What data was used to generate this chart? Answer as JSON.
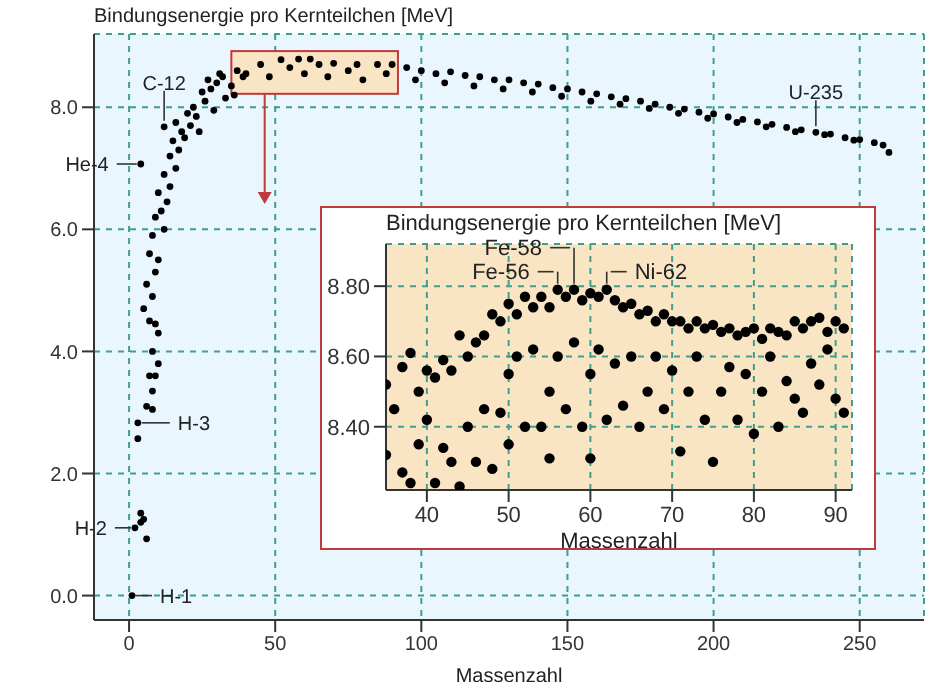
{
  "chart_data": [
    {
      "type": "scatter",
      "title": "Bindungsenergie pro Kernteilchen [MeV]",
      "xlabel": "Massenzahl",
      "color": "#000000",
      "marker": "circle",
      "grid": true,
      "xlim": [
        -12,
        272
      ],
      "ylim": [
        -0.4,
        9.2
      ],
      "xticks": [
        0,
        50,
        100,
        150,
        200,
        250
      ],
      "yticks": [
        {
          "value": 0,
          "label": "0.0"
        },
        {
          "value": 2,
          "label": "2.0"
        },
        {
          "value": 4,
          "label": "4.0"
        },
        {
          "value": 6,
          "label": "6.0"
        },
        {
          "value": 8,
          "label": "8.0"
        }
      ],
      "x": [
        1,
        2,
        3,
        3,
        4,
        5,
        4,
        6,
        6,
        8,
        8,
        9,
        10,
        7,
        8,
        10,
        9,
        7,
        5,
        8,
        6,
        9,
        7,
        10,
        8,
        12,
        9,
        11,
        13,
        10,
        14,
        12,
        16,
        4,
        12,
        14,
        17,
        15,
        19,
        18,
        16,
        21,
        20,
        23,
        22,
        26,
        25,
        28,
        30,
        27,
        32,
        24,
        29,
        33,
        35,
        31,
        37,
        36,
        39,
        40,
        45,
        48,
        52,
        55,
        58,
        60,
        62,
        65,
        68,
        70,
        75,
        78,
        80,
        85,
        88,
        90,
        95,
        98,
        100,
        105,
        108,
        110,
        115,
        118,
        120,
        125,
        128,
        130,
        135,
        138,
        140,
        145,
        148,
        150,
        155,
        158,
        160,
        165,
        168,
        170,
        175,
        178,
        180,
        185,
        188,
        190,
        195,
        198,
        200,
        205,
        208,
        210,
        215,
        218,
        220,
        225,
        228,
        230,
        235,
        238,
        240,
        245,
        248,
        250,
        255,
        258,
        260
      ],
      "values": [
        0,
        1.11,
        2.57,
        2.83,
        1.35,
        1.25,
        1.2,
        0.93,
        3.1,
        3.05,
        3.35,
        3.6,
        3.8,
        3.6,
        4.0,
        4.3,
        4.45,
        4.5,
        4.7,
        4.9,
        5.1,
        5.3,
        5.6,
        5.5,
        5.9,
        6.0,
        6.2,
        6.3,
        6.45,
        6.6,
        6.7,
        6.9,
        7.0,
        7.07,
        7.68,
        7.2,
        7.3,
        7.45,
        7.5,
        7.6,
        7.75,
        7.7,
        7.9,
        7.85,
        8.0,
        8.1,
        8.25,
        8.3,
        8.4,
        8.45,
        8.5,
        7.6,
        7.95,
        8.15,
        8.35,
        8.55,
        8.6,
        8.2,
        8.5,
        8.55,
        8.7,
        8.5,
        8.78,
        8.65,
        8.79,
        8.55,
        8.79,
        8.7,
        8.5,
        8.72,
        8.6,
        8.7,
        8.45,
        8.7,
        8.55,
        8.7,
        8.65,
        8.45,
        8.6,
        8.55,
        8.4,
        8.58,
        8.52,
        8.35,
        8.5,
        8.45,
        8.3,
        8.45,
        8.4,
        8.25,
        8.38,
        8.32,
        8.18,
        8.3,
        8.25,
        8.1,
        8.22,
        8.17,
        8.05,
        8.14,
        8.1,
        7.98,
        8.05,
        8.0,
        7.9,
        7.97,
        7.92,
        7.82,
        7.89,
        7.84,
        7.75,
        7.8,
        7.76,
        7.68,
        7.72,
        7.67,
        7.6,
        7.63,
        7.59,
        7.55,
        7.56,
        7.5,
        7.46,
        7.47,
        7.42,
        7.38,
        7.26
      ],
      "annotations": [
        {
          "text": "H-1",
          "x": 1,
          "y": 0
        },
        {
          "text": "H-2",
          "x": 2,
          "y": 1.11
        },
        {
          "text": "H-3",
          "x": 3,
          "y": 2.83
        },
        {
          "text": "He-4",
          "x": 4,
          "y": 7.07
        },
        {
          "text": "C-12",
          "x": 12,
          "y": 7.68
        },
        {
          "text": "U-235",
          "x": 235,
          "y": 7.59
        }
      ]
    },
    {
      "type": "scatter",
      "title": "Bindungsenergie pro Kernteilchen [MeV]",
      "xlabel": "Massenzahl",
      "color": "#000000",
      "marker": "circle",
      "grid": true,
      "xlim": [
        35,
        92
      ],
      "ylim": [
        8.22,
        8.92
      ],
      "xticks": [
        40,
        50,
        60,
        70,
        80,
        90
      ],
      "yticks": [
        {
          "value": 8.4,
          "label": "8.40"
        },
        {
          "value": 8.6,
          "label": "8.60"
        },
        {
          "value": 8.8,
          "label": "8.80"
        }
      ],
      "x": [
        35,
        35,
        36,
        37,
        37,
        38,
        38,
        39,
        39,
        40,
        40,
        41,
        41,
        42,
        42,
        43,
        43,
        44,
        44,
        45,
        45,
        46,
        46,
        47,
        47,
        48,
        48,
        49,
        49,
        50,
        50,
        50,
        51,
        51,
        52,
        52,
        53,
        53,
        54,
        54,
        55,
        55,
        55,
        56,
        56,
        57,
        57,
        58,
        58,
        59,
        59,
        60,
        60,
        60,
        61,
        61,
        62,
        62,
        63,
        63,
        64,
        64,
        65,
        65,
        66,
        66,
        67,
        67,
        68,
        68,
        69,
        69,
        70,
        70,
        71,
        71,
        72,
        72,
        73,
        73,
        74,
        74,
        75,
        75,
        76,
        76,
        77,
        77,
        78,
        78,
        79,
        79,
        80,
        80,
        81,
        81,
        82,
        82,
        83,
        83,
        84,
        84,
        85,
        85,
        86,
        86,
        87,
        87,
        88,
        88,
        89,
        89,
        90,
        90,
        91,
        91
      ],
      "values": [
        8.52,
        8.32,
        8.45,
        8.57,
        8.27,
        8.61,
        8.24,
        8.5,
        8.35,
        8.56,
        8.42,
        8.54,
        8.24,
        8.59,
        8.34,
        8.56,
        8.3,
        8.66,
        8.23,
        8.6,
        8.4,
        8.64,
        8.3,
        8.66,
        8.45,
        8.72,
        8.28,
        8.7,
        8.44,
        8.75,
        8.55,
        8.35,
        8.72,
        8.6,
        8.77,
        8.4,
        8.74,
        8.62,
        8.77,
        8.4,
        8.74,
        8.5,
        8.31,
        8.79,
        8.6,
        8.77,
        8.45,
        8.79,
        8.64,
        8.76,
        8.4,
        8.78,
        8.55,
        8.31,
        8.77,
        8.62,
        8.79,
        8.42,
        8.76,
        8.58,
        8.74,
        8.46,
        8.75,
        8.6,
        8.72,
        8.4,
        8.73,
        8.5,
        8.7,
        8.6,
        8.72,
        8.45,
        8.7,
        8.56,
        8.7,
        8.33,
        8.68,
        8.5,
        8.7,
        8.6,
        8.68,
        8.42,
        8.69,
        8.3,
        8.67,
        8.5,
        8.68,
        8.57,
        8.66,
        8.42,
        8.67,
        8.55,
        8.68,
        8.38,
        8.65,
        8.5,
        8.68,
        8.6,
        8.67,
        8.4,
        8.66,
        8.53,
        8.7,
        8.48,
        8.68,
        8.44,
        8.7,
        8.58,
        8.71,
        8.52,
        8.67,
        8.62,
        8.7,
        8.48,
        8.68,
        8.44
      ],
      "annotations": [
        {
          "text": "Fe-56",
          "x": 56,
          "y": 8.79
        },
        {
          "text": "Fe-58",
          "x": 58,
          "y": 8.79
        },
        {
          "text": "Ni-62",
          "x": 62,
          "y": 8.79
        }
      ]
    }
  ]
}
